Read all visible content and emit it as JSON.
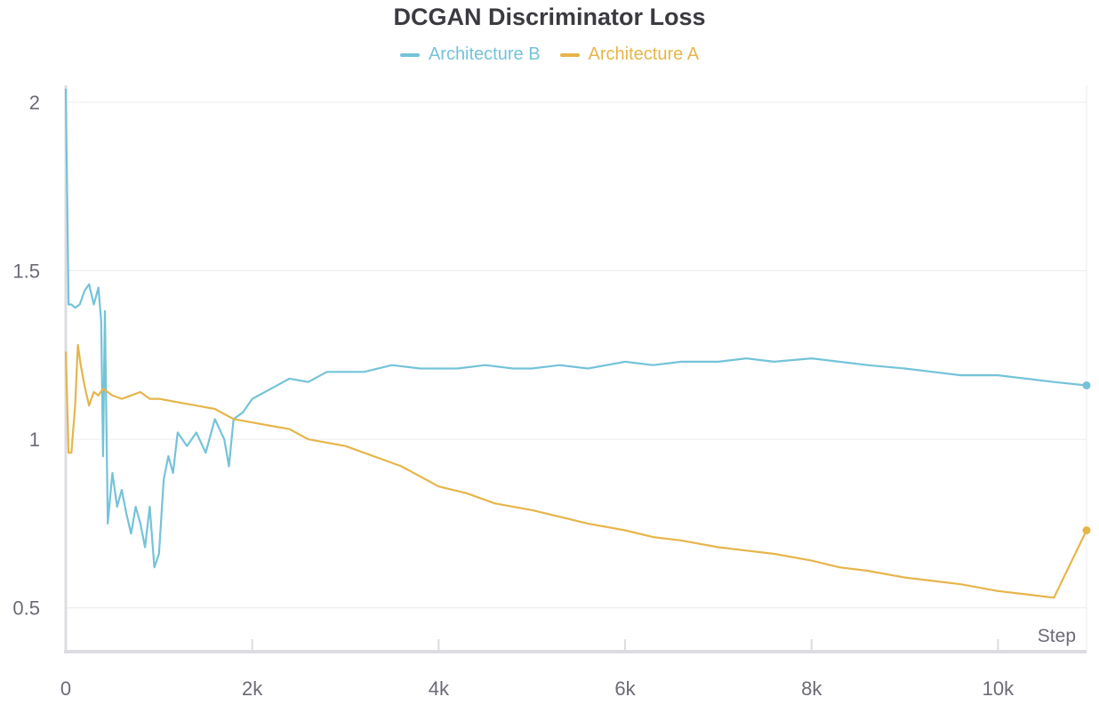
{
  "chart_data": {
    "type": "line",
    "title": "DCGAN Discriminator Loss",
    "xlabel": "Step",
    "ylabel": "",
    "xlim": [
      0,
      10950
    ],
    "ylim": [
      0.37,
      2.05
    ],
    "xticks": [
      0,
      2000,
      4000,
      6000,
      8000,
      10000
    ],
    "xtick_labels": [
      "0",
      "2k",
      "4k",
      "6k",
      "8k",
      "10k"
    ],
    "yticks": [
      0.5,
      1,
      1.5,
      2
    ],
    "ytick_labels": [
      "0.5",
      "1",
      "1.5",
      "2"
    ],
    "grid": true,
    "legend_position": "top-center",
    "series": [
      {
        "name": "Architecture B",
        "color": "#74c3d9",
        "x": [
          0,
          30,
          60,
          100,
          150,
          200,
          250,
          300,
          350,
          380,
          400,
          420,
          450,
          500,
          550,
          600,
          650,
          700,
          750,
          800,
          850,
          900,
          950,
          1000,
          1050,
          1100,
          1150,
          1200,
          1300,
          1400,
          1500,
          1600,
          1700,
          1750,
          1800,
          1900,
          2000,
          2200,
          2400,
          2600,
          2800,
          3000,
          3200,
          3500,
          3800,
          4000,
          4200,
          4500,
          4800,
          5000,
          5300,
          5600,
          6000,
          6300,
          6600,
          7000,
          7300,
          7600,
          8000,
          8300,
          8600,
          9000,
          9300,
          9600,
          10000,
          10300,
          10600,
          10950
        ],
        "values": [
          2.04,
          1.4,
          1.4,
          1.39,
          1.4,
          1.44,
          1.46,
          1.4,
          1.45,
          1.35,
          0.95,
          1.38,
          0.75,
          0.9,
          0.8,
          0.85,
          0.78,
          0.72,
          0.8,
          0.75,
          0.68,
          0.8,
          0.62,
          0.66,
          0.88,
          0.95,
          0.9,
          1.02,
          0.98,
          1.02,
          0.96,
          1.06,
          1.0,
          0.92,
          1.06,
          1.08,
          1.12,
          1.15,
          1.18,
          1.17,
          1.2,
          1.2,
          1.2,
          1.22,
          1.21,
          1.21,
          1.21,
          1.22,
          1.21,
          1.21,
          1.22,
          1.21,
          1.23,
          1.22,
          1.23,
          1.23,
          1.24,
          1.23,
          1.24,
          1.23,
          1.22,
          1.21,
          1.2,
          1.19,
          1.19,
          1.18,
          1.17,
          1.16
        ]
      },
      {
        "name": "Architecture A",
        "color": "#e6b54a",
        "x": [
          0,
          30,
          60,
          100,
          130,
          160,
          200,
          250,
          300,
          350,
          400,
          450,
          500,
          600,
          700,
          800,
          900,
          1000,
          1200,
          1400,
          1600,
          1800,
          2000,
          2200,
          2400,
          2600,
          2800,
          3000,
          3200,
          3400,
          3600,
          3800,
          4000,
          4300,
          4600,
          5000,
          5300,
          5600,
          6000,
          6300,
          6600,
          7000,
          7300,
          7600,
          8000,
          8300,
          8600,
          9000,
          9300,
          9600,
          10000,
          10300,
          10600,
          10950
        ],
        "values": [
          1.26,
          0.96,
          0.96,
          1.1,
          1.28,
          1.22,
          1.16,
          1.1,
          1.14,
          1.13,
          1.15,
          1.14,
          1.13,
          1.12,
          1.13,
          1.14,
          1.12,
          1.12,
          1.11,
          1.1,
          1.09,
          1.06,
          1.05,
          1.04,
          1.03,
          1.0,
          0.99,
          0.98,
          0.96,
          0.94,
          0.92,
          0.89,
          0.86,
          0.84,
          0.81,
          0.79,
          0.77,
          0.75,
          0.73,
          0.71,
          0.7,
          0.68,
          0.67,
          0.66,
          0.64,
          0.62,
          0.61,
          0.59,
          0.58,
          0.57,
          0.55,
          0.54,
          0.53,
          0.73
        ]
      }
    ]
  }
}
